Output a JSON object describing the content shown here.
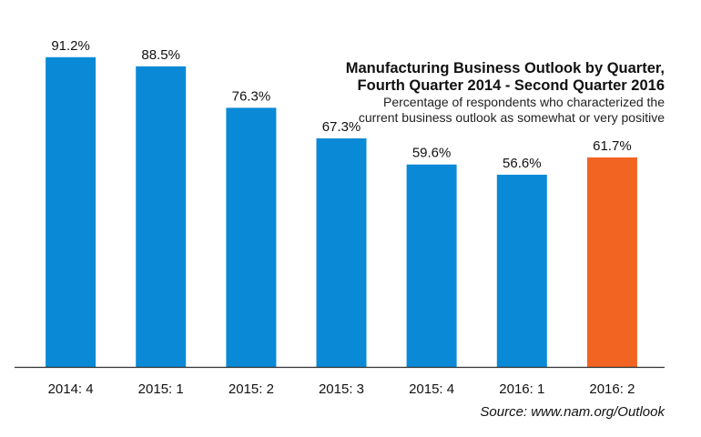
{
  "chart_data": {
    "type": "bar",
    "title_line_1": "Manufacturing Business Outlook by Quarter,",
    "title_line_2": "Fourth Quarter 2014 - Second Quarter 2016",
    "subtitle_line_1": "Percentage of respondents who characterized the",
    "subtitle_line_2": "current business outlook as somewhat or very positive",
    "source": "Source: www.nam.org/Outlook",
    "categories": [
      "2014: 4",
      "2015: 1",
      "2015: 2",
      "2015: 3",
      "2015: 4",
      "2016: 1",
      "2016: 2"
    ],
    "values": [
      91.2,
      88.5,
      76.3,
      67.3,
      59.6,
      56.6,
      61.7
    ],
    "value_labels": [
      "91.2%",
      "88.5%",
      "76.3%",
      "67.3%",
      "59.6%",
      "56.6%",
      "61.7%"
    ],
    "highlight_index": 6,
    "colors": {
      "bar": "#0a8ad6",
      "highlight": "#f26422",
      "axis": "#333333"
    },
    "ylim": [
      0,
      100
    ],
    "grid": false,
    "legend": "none"
  }
}
